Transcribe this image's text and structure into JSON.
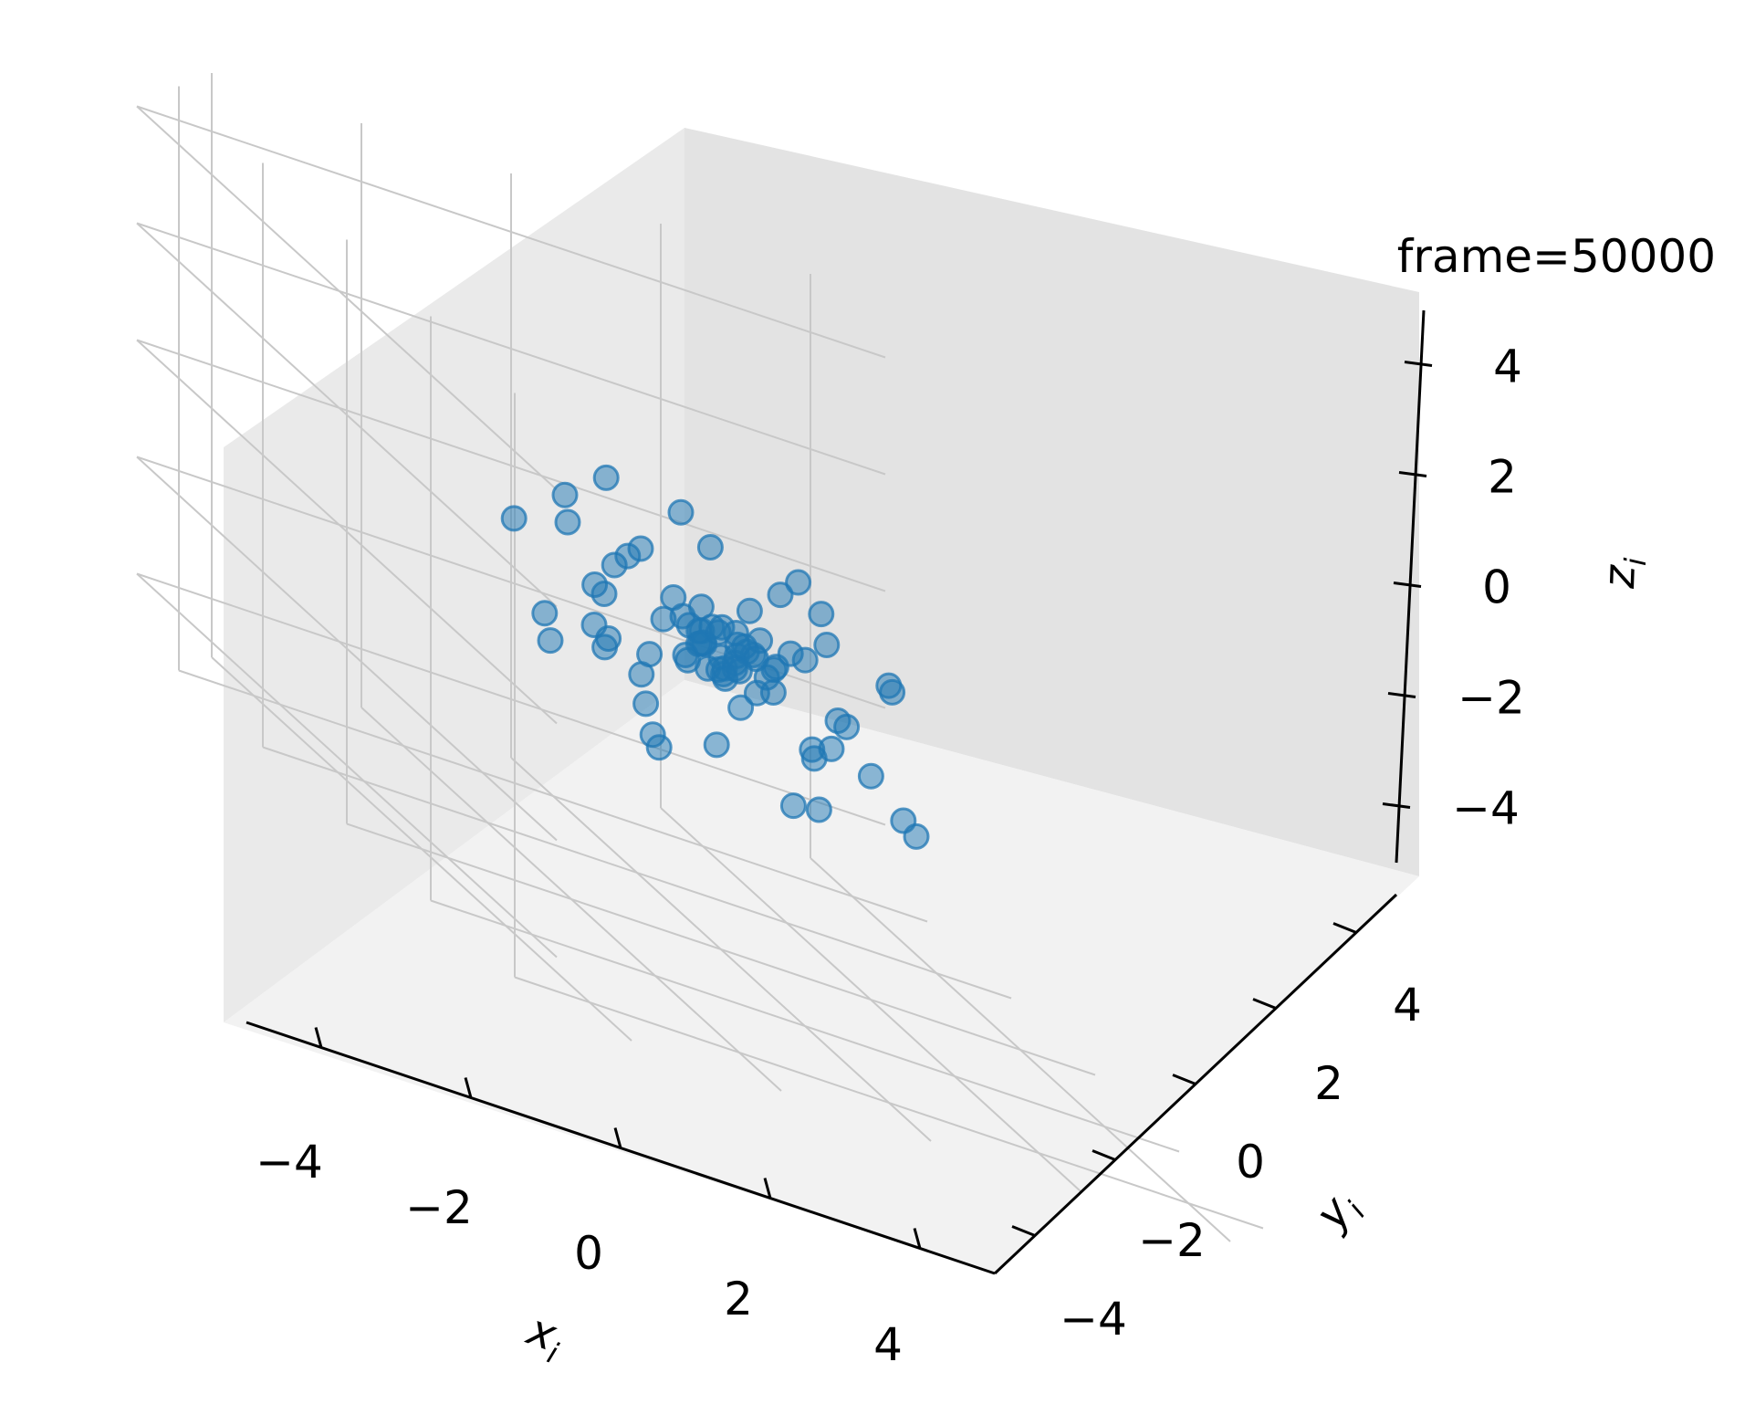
{
  "chart_data": {
    "type": "scatter",
    "projection": "3d",
    "title": "frame=50000",
    "title_position": "top-right",
    "xlabel": "x_i",
    "ylabel": "y_i",
    "zlabel": "z_i",
    "xlim": [
      -5,
      5
    ],
    "ylim": [
      -5,
      5
    ],
    "zlim": [
      -5,
      5
    ],
    "xticks": [
      "−4",
      "−2",
      "0",
      "2",
      "4"
    ],
    "yticks": [
      "−4",
      "−2",
      "0",
      "2",
      "4"
    ],
    "zticks": [
      "−4",
      "−2",
      "0",
      "2",
      "4"
    ],
    "tick_values": [
      -4,
      -2,
      0,
      2,
      4
    ],
    "grid": true,
    "marker_color": "#1f77b4",
    "marker_alpha": 0.5,
    "points": [
      [
        -0.2,
        0.1,
        0.3
      ],
      [
        0.1,
        -0.2,
        0.2
      ],
      [
        0.3,
        0.2,
        -0.1
      ],
      [
        -0.1,
        0.3,
        0.0
      ],
      [
        0.2,
        0.0,
        0.5
      ],
      [
        0.0,
        -0.1,
        -0.3
      ],
      [
        -0.3,
        0.0,
        0.1
      ],
      [
        0.4,
        0.1,
        0.2
      ],
      [
        0.1,
        0.4,
        0.3
      ],
      [
        -0.2,
        -0.3,
        -0.1
      ],
      [
        0.5,
        -0.2,
        0.0
      ],
      [
        0.2,
        0.3,
        -0.4
      ],
      [
        -0.4,
        0.2,
        0.4
      ],
      [
        0.0,
        0.0,
        0.0
      ],
      [
        0.3,
        -0.3,
        0.3
      ],
      [
        -0.1,
        -0.2,
        0.6
      ],
      [
        0.6,
        0.3,
        0.1
      ],
      [
        -0.5,
        -0.1,
        -0.2
      ],
      [
        0.1,
        0.6,
        -0.1
      ],
      [
        0.2,
        -0.5,
        -0.2
      ],
      [
        -0.6,
        0.3,
        0.2
      ],
      [
        0.7,
        0.0,
        -0.3
      ],
      [
        -0.3,
        0.6,
        0.5
      ],
      [
        0.4,
        -0.6,
        0.4
      ],
      [
        -0.7,
        -0.4,
        0.0
      ],
      [
        0.8,
        0.5,
        0.3
      ],
      [
        -0.2,
        -0.8,
        0.2
      ],
      [
        0.5,
        0.8,
        -0.5
      ],
      [
        -0.9,
        0.1,
        -0.4
      ],
      [
        0.9,
        -0.4,
        0.6
      ],
      [
        -1.2,
        0.4,
        0.8
      ],
      [
        1.1,
        0.7,
        -0.2
      ],
      [
        -0.8,
        -0.9,
        0.7
      ],
      [
        0.6,
        -1.1,
        -0.6
      ],
      [
        -1.0,
        0.9,
        -0.7
      ],
      [
        1.3,
        -0.2,
        0.9
      ],
      [
        -0.4,
        1.2,
        0.9
      ],
      [
        0.2,
        -1.3,
        1.0
      ],
      [
        -1.4,
        -0.6,
        -0.5
      ],
      [
        1.0,
        1.1,
        0.5
      ],
      [
        -1.6,
        0.8,
        1.1
      ],
      [
        1.5,
        -0.9,
        -0.8
      ],
      [
        -0.9,
        -1.5,
        -0.9
      ],
      [
        0.7,
        1.5,
        1.2
      ],
      [
        -1.8,
        -0.2,
        0.6
      ],
      [
        1.7,
        0.4,
        -1.1
      ],
      [
        -0.6,
        1.7,
        -1.2
      ],
      [
        0.3,
        -1.8,
        -1.3
      ],
      [
        -1.3,
        1.4,
        1.3
      ],
      [
        1.4,
        -1.5,
        1.1
      ],
      [
        -2.0,
        0.5,
        -0.9
      ],
      [
        1.9,
        1.0,
        0.9
      ],
      [
        -1.1,
        -1.9,
        1.2
      ],
      [
        0.9,
        2.0,
        -0.7
      ],
      [
        -2.2,
        -0.9,
        0.2
      ],
      [
        2.1,
        -0.6,
        -1.5
      ],
      [
        -0.3,
        2.2,
        1.5
      ],
      [
        0.5,
        -2.1,
        0.4
      ],
      [
        -1.7,
        1.9,
        0.4
      ],
      [
        1.6,
        -1.8,
        -1.2
      ],
      [
        -0.8,
        0.2,
        -1.8
      ],
      [
        0.4,
        -0.7,
        1.7
      ],
      [
        -0.5,
        0.9,
        -1.6
      ],
      [
        1.2,
        0.3,
        1.6
      ],
      [
        -1.5,
        -1.2,
        -1.4
      ],
      [
        0.8,
        -0.3,
        -2.0
      ],
      [
        -0.2,
        0.6,
        2.0
      ],
      [
        1.0,
        -1.0,
        0.0
      ],
      [
        -1.0,
        1.0,
        0.0
      ],
      [
        0.6,
        0.6,
        -1.0
      ],
      [
        -0.6,
        -0.6,
        1.0
      ],
      [
        2.4,
        0.2,
        0.3
      ],
      [
        -2.3,
        0.1,
        -0.3
      ],
      [
        0.1,
        2.4,
        0.2
      ],
      [
        -0.1,
        -2.4,
        -0.2
      ],
      [
        0.3,
        0.2,
        -0.2
      ],
      [
        -0.2,
        0.4,
        0.2
      ],
      [
        0.5,
        0.5,
        0.1
      ],
      [
        -0.4,
        -0.4,
        -0.1
      ],
      [
        0.2,
        -0.2,
        0.4
      ]
    ]
  }
}
